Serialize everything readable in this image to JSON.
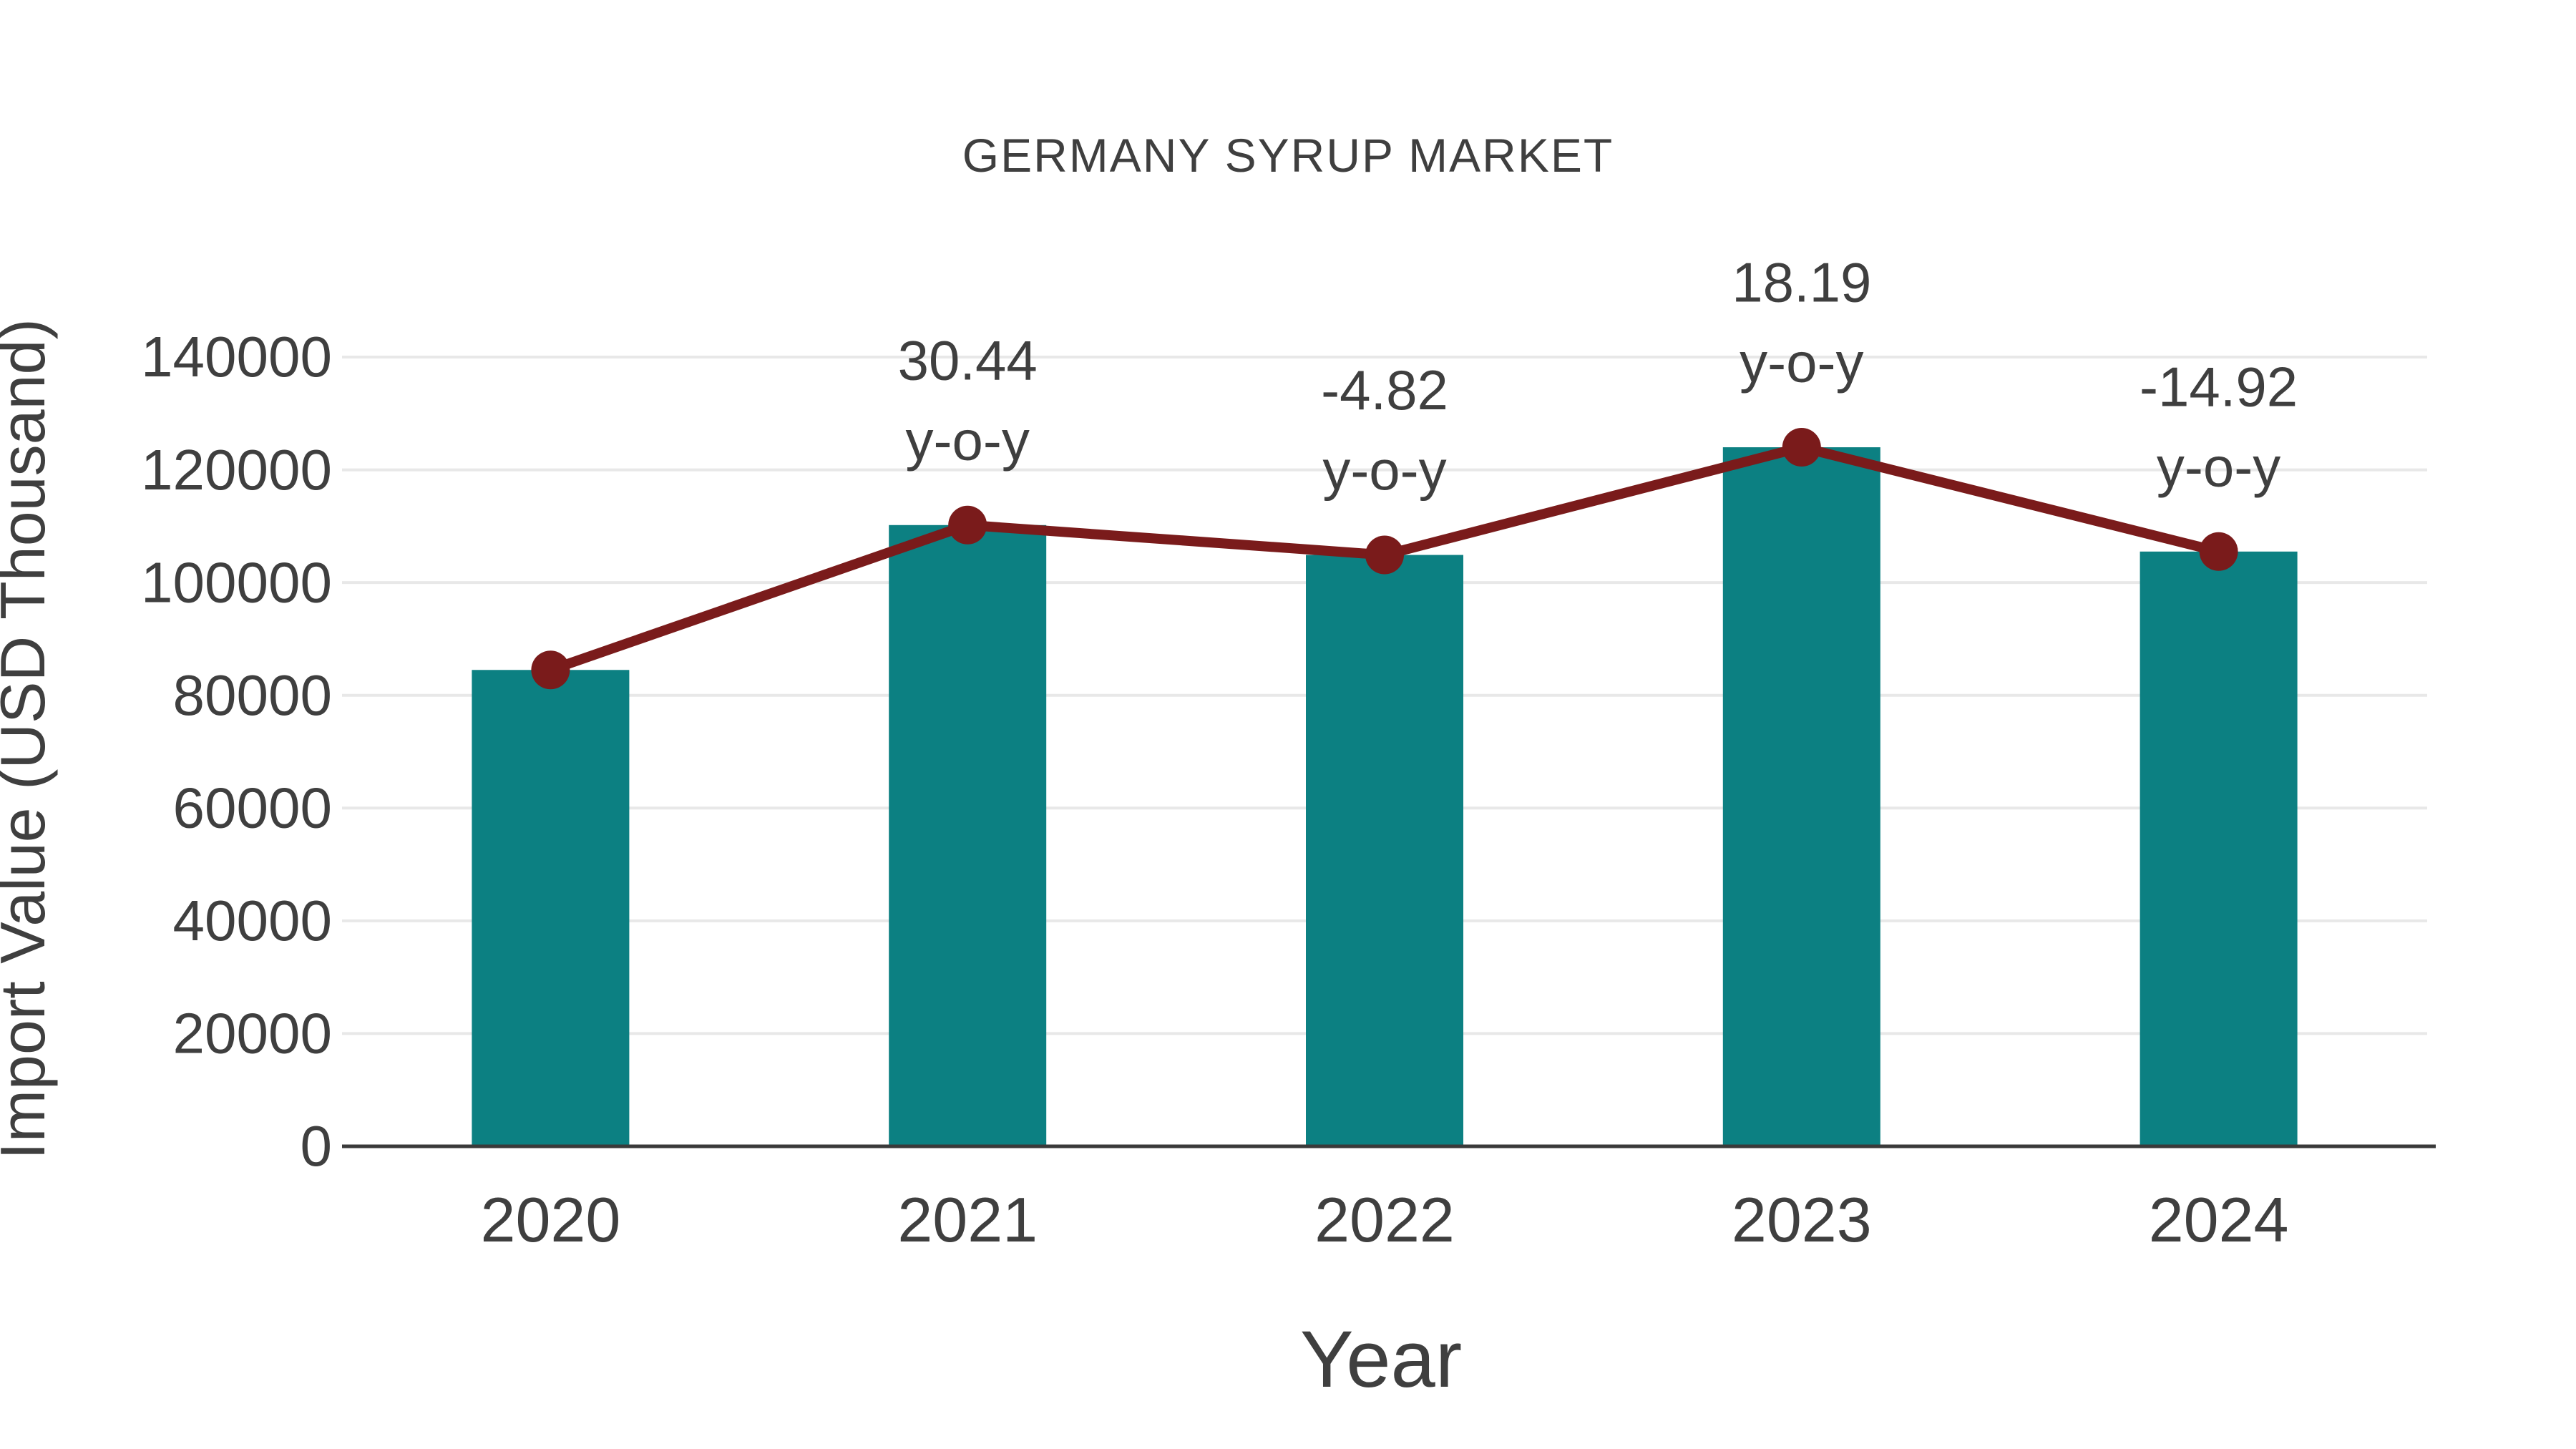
{
  "title": "GERMANY SYRUP MARKET",
  "colors": {
    "bar": "#0c8082",
    "line": "#7a1b1b",
    "marker": "#7a1b1b",
    "grid": "#e8e8e8",
    "axis_line": "#3a3a3a",
    "text": "#3f3f3f",
    "background": "#ffffff"
  },
  "chart_data": {
    "type": "bar",
    "overlay_type": "line",
    "title": "GERMANY SYRUP MARKET",
    "xlabel": "Year",
    "ylabel": "Import Value (USD Thousand)",
    "categories": [
      "2020",
      "2021",
      "2022",
      "2023",
      "2024"
    ],
    "series": [
      {
        "name": "Import Value (USD Thousand)",
        "type": "bar",
        "values": [
          84500,
          110200,
          104900,
          124000,
          105500
        ]
      },
      {
        "name": "y-o-y change marker line",
        "type": "line",
        "values": [
          84500,
          110200,
          104900,
          124000,
          105500
        ]
      }
    ],
    "yoy_annotations": [
      {
        "category": "2021",
        "value_line": "30.44",
        "suffix_line": "y-o-y"
      },
      {
        "category": "2022",
        "value_line": "-4.82",
        "suffix_line": "y-o-y"
      },
      {
        "category": "2023",
        "value_line": "18.19",
        "suffix_line": "y-o-y"
      },
      {
        "category": "2024",
        "value_line": "-14.92",
        "suffix_line": "y-o-y"
      }
    ],
    "ylim": [
      0,
      140000
    ],
    "yticks": [
      0,
      20000,
      40000,
      60000,
      80000,
      100000,
      120000,
      140000
    ],
    "grid": "horizontal",
    "legend_position": "none"
  }
}
